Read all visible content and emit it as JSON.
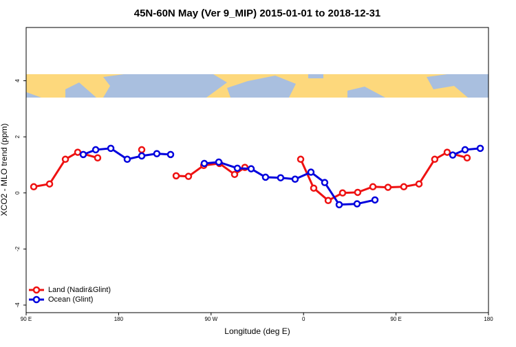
{
  "chart_data": {
    "type": "line",
    "title": "45N-60N May (Ver 9_MIP)   2015-01-01 to 2018-12-31",
    "x_label": "Longitude (deg E)",
    "y_label": "XCO2 - MLO trend (ppm)",
    "xlim": [
      90,
      540
    ],
    "xticks": [
      {
        "value": 90,
        "label": "90 E"
      },
      {
        "value": 180,
        "label": "180"
      },
      {
        "value": 270,
        "label": "90 W"
      },
      {
        "value": 360,
        "label": "0"
      },
      {
        "value": 450,
        "label": "90 E"
      },
      {
        "value": 540,
        "label": "180"
      }
    ],
    "ylim": [
      -4.27,
      5.9
    ],
    "yticks": [
      -4,
      -2,
      0,
      2,
      4
    ],
    "legend": "bottom-left",
    "series": [
      {
        "name": "Land (Nadir&Glint)",
        "color": "#ee1111",
        "x": [
          97.4,
          112.8,
          128.2,
          140.2,
          159.6,
          null,
          202.5,
          null,
          236,
          248,
          262.8,
          278.2,
          292.9,
          302.9,
          null,
          357.2,
          369.9,
          384,
          398,
          412.7,
          427.5,
          442.2,
          457.6,
          472.4,
          487.7,
          499.8,
          519.2
        ],
        "values": [
          0.22,
          0.32,
          1.2,
          1.45,
          1.25,
          null,
          1.54,
          null,
          0.61,
          0.59,
          0.98,
          1.05,
          0.66,
          0.91,
          null,
          1.2,
          0.17,
          -0.27,
          0,
          0.02,
          0.22,
          0.2,
          0.22,
          0.32,
          1.2,
          1.45,
          1.25
        ]
      },
      {
        "name": "Ocean (Glint)",
        "color": "#0000dd",
        "x": [
          145.6,
          157.7,
          172.4,
          188.4,
          202.5,
          217.2,
          230.6,
          null,
          263.4,
          277.5,
          295.6,
          309,
          323,
          337.7,
          351.8,
          367.2,
          380.6,
          394.7,
          412.1,
          429.5,
          null,
          505.2,
          517.2,
          532
        ],
        "values": [
          1.37,
          1.54,
          1.59,
          1.2,
          1.32,
          1.4,
          1.37,
          null,
          1.05,
          1.1,
          0.88,
          0.86,
          0.56,
          0.54,
          0.49,
          0.74,
          0.37,
          -0.42,
          -0.39,
          -0.25,
          null,
          1.35,
          1.54,
          1.59
        ]
      }
    ]
  }
}
